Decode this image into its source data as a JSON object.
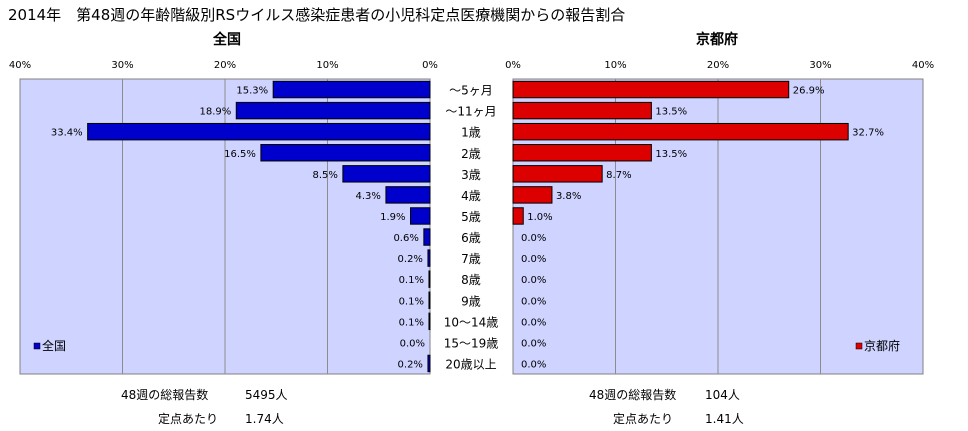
{
  "title": "2014年　第48週の年齢階級別RSウイルス感染症患者の小児科定点医療機関からの報告割合",
  "chart_data": [
    {
      "type": "bar",
      "orientation": "horizontal",
      "title": "全国",
      "categories": [
        "～5ヶ月",
        "～11ヶ月",
        "1歳",
        "2歳",
        "3歳",
        "4歳",
        "5歳",
        "6歳",
        "7歳",
        "8歳",
        "9歳",
        "10～14歳",
        "15～19歳",
        "20歳以上"
      ],
      "series": [
        {
          "name": "全国",
          "values": [
            15.3,
            18.9,
            33.4,
            16.5,
            8.5,
            4.3,
            1.9,
            0.6,
            0.2,
            0.1,
            0.1,
            0.1,
            0.0,
            0.2
          ],
          "color": "#0000cc"
        }
      ],
      "data_labels": [
        "15.3%",
        "18.9%",
        "33.4%",
        "16.5%",
        "8.5%",
        "4.3%",
        "1.9%",
        "0.6%",
        "0.2%",
        "0.1%",
        "0.1%",
        "0.1%",
        "0.0%",
        "0.2%"
      ],
      "xlim": [
        0,
        40
      ],
      "x_direction": "reversed",
      "ticks": [
        "40%",
        "30%",
        "20%",
        "10%",
        "0%"
      ],
      "grid": true,
      "legend": "bottom-left",
      "background": "#cfd3ff"
    },
    {
      "type": "bar",
      "orientation": "horizontal",
      "title": "京都府",
      "categories": [
        "～5ヶ月",
        "～11ヶ月",
        "1歳",
        "2歳",
        "3歳",
        "4歳",
        "5歳",
        "6歳",
        "7歳",
        "8歳",
        "9歳",
        "10～14歳",
        "15～19歳",
        "20歳以上"
      ],
      "series": [
        {
          "name": "京都府",
          "values": [
            26.9,
            13.5,
            32.7,
            13.5,
            8.7,
            3.8,
            1.0,
            0.0,
            0.0,
            0.0,
            0.0,
            0.0,
            0.0,
            0.0
          ],
          "color": "#dd0000"
        }
      ],
      "data_labels": [
        "26.9%",
        "13.5%",
        "32.7%",
        "13.5%",
        "8.7%",
        "3.8%",
        "1.0%",
        "0.0%",
        "0.0%",
        "0.0%",
        "0.0%",
        "0.0%",
        "0.0%",
        "0.0%"
      ],
      "xlim": [
        0,
        40
      ],
      "ticks": [
        "0%",
        "10%",
        "20%",
        "30%",
        "40%"
      ],
      "grid": true,
      "legend": "bottom-right",
      "background": "#cfd3ff"
    }
  ],
  "stats": {
    "national": {
      "total_label": "48週の総報告数",
      "total_value": "5495人",
      "per_label": "定点あたり",
      "per_value": "1.74人"
    },
    "kyoto": {
      "total_label": "48週の総報告数",
      "total_value": "104人",
      "per_label": "定点あたり",
      "per_value": "1.41人"
    }
  }
}
